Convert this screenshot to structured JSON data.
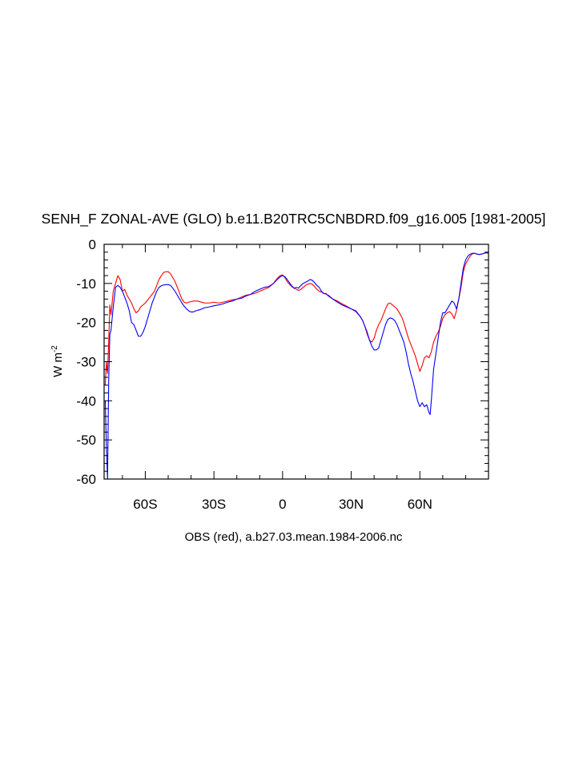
{
  "chart_data": {
    "type": "line",
    "title": "SENH_F ZONAL-AVE (GLO) b.e11.B20TRC5CNBDRD.f09_g16.005 [1981-2005]",
    "xlabel": "OBS (red), a.b27.03.mean.1984-2006.nc",
    "ylabel_main": "W m",
    "ylabel_sup": "-2",
    "xlim": [
      -78,
      90
    ],
    "ylim": [
      -60,
      0
    ],
    "grid": false,
    "legend": "none",
    "xticks": [
      {
        "value": -60,
        "label": "60S"
      },
      {
        "value": -30,
        "label": "30S"
      },
      {
        "value": 0,
        "label": "0"
      },
      {
        "value": 30,
        "label": "30N"
      },
      {
        "value": 60,
        "label": "60N"
      }
    ],
    "yticks": [
      {
        "value": 0,
        "label": "0"
      },
      {
        "value": -10,
        "label": "-10"
      },
      {
        "value": -20,
        "label": "-20"
      },
      {
        "value": -30,
        "label": "-30"
      },
      {
        "value": -40,
        "label": "-40"
      },
      {
        "value": -50,
        "label": "-50"
      },
      {
        "value": -60,
        "label": "-60"
      }
    ],
    "series": [
      {
        "color": "#ff0000",
        "points": [
          [
            -77.5,
            -36
          ],
          [
            -77,
            -30
          ],
          [
            -76.5,
            -33
          ],
          [
            -76,
            -25
          ],
          [
            -75.5,
            -15.5
          ],
          [
            -75,
            -18
          ],
          [
            -74.5,
            -15
          ],
          [
            -74,
            -12
          ],
          [
            -73,
            -10
          ],
          [
            -72,
            -8
          ],
          [
            -71,
            -9
          ],
          [
            -70,
            -12
          ],
          [
            -69,
            -11.5
          ],
          [
            -68,
            -13
          ],
          [
            -67,
            -14
          ],
          [
            -66,
            -15
          ],
          [
            -65,
            -16.5
          ],
          [
            -64,
            -17.5
          ],
          [
            -63,
            -17
          ],
          [
            -62,
            -16
          ],
          [
            -60,
            -15
          ],
          [
            -58,
            -13.5
          ],
          [
            -56,
            -12
          ],
          [
            -55,
            -10.5
          ],
          [
            -54,
            -9
          ],
          [
            -53,
            -8
          ],
          [
            -52,
            -7.2
          ],
          [
            -51,
            -7
          ],
          [
            -50,
            -7
          ],
          [
            -49,
            -7.5
          ],
          [
            -48,
            -8.5
          ],
          [
            -47,
            -9.5
          ],
          [
            -46,
            -11
          ],
          [
            -45,
            -12.5
          ],
          [
            -44,
            -14
          ],
          [
            -43,
            -14.8
          ],
          [
            -42,
            -15
          ],
          [
            -41,
            -14.8
          ],
          [
            -39,
            -14.5
          ],
          [
            -37,
            -14.5
          ],
          [
            -36,
            -14.7
          ],
          [
            -34,
            -15
          ],
          [
            -32,
            -15
          ],
          [
            -30,
            -14.8
          ],
          [
            -28,
            -15
          ],
          [
            -26,
            -14.8
          ],
          [
            -24,
            -14.5
          ],
          [
            -22,
            -14.2
          ],
          [
            -20,
            -14
          ],
          [
            -18,
            -13.5
          ],
          [
            -16,
            -13
          ],
          [
            -14,
            -12.8
          ],
          [
            -12,
            -12.5
          ],
          [
            -10,
            -12
          ],
          [
            -8,
            -11.5
          ],
          [
            -6,
            -11
          ],
          [
            -4,
            -10
          ],
          [
            -3,
            -9.2
          ],
          [
            -2,
            -8.5
          ],
          [
            -1,
            -8
          ],
          [
            0,
            -7.8
          ],
          [
            1,
            -8.5
          ],
          [
            2,
            -9.5
          ],
          [
            3,
            -10.2
          ],
          [
            4,
            -10.8
          ],
          [
            5,
            -11.2
          ],
          [
            6,
            -11.5
          ],
          [
            7,
            -11.8
          ],
          [
            8,
            -11.5
          ],
          [
            9,
            -11
          ],
          [
            10,
            -10.5
          ],
          [
            11,
            -10.2
          ],
          [
            12,
            -10
          ],
          [
            13,
            -10.2
          ],
          [
            14,
            -10.8
          ],
          [
            15,
            -11.5
          ],
          [
            16,
            -12
          ],
          [
            17,
            -12.2
          ],
          [
            18,
            -12.5
          ],
          [
            20,
            -13
          ],
          [
            22,
            -14
          ],
          [
            24,
            -14.5
          ],
          [
            26,
            -15.2
          ],
          [
            28,
            -15.8
          ],
          [
            30,
            -16.5
          ],
          [
            32,
            -17.2
          ],
          [
            34,
            -18.5
          ],
          [
            35,
            -19.5
          ],
          [
            36,
            -21
          ],
          [
            37,
            -23
          ],
          [
            38,
            -24.5
          ],
          [
            39,
            -25
          ],
          [
            40,
            -24
          ],
          [
            41,
            -22
          ],
          [
            42,
            -20.5
          ],
          [
            43,
            -19.5
          ],
          [
            44,
            -18
          ],
          [
            45,
            -16.5
          ],
          [
            46,
            -15.2
          ],
          [
            47,
            -15
          ],
          [
            48,
            -15.5
          ],
          [
            49,
            -16
          ],
          [
            50,
            -16.5
          ],
          [
            51,
            -17.5
          ],
          [
            52,
            -18.5
          ],
          [
            53,
            -20
          ],
          [
            54,
            -22
          ],
          [
            55,
            -24
          ],
          [
            56,
            -25.5
          ],
          [
            57,
            -27
          ],
          [
            58,
            -28.5
          ],
          [
            59,
            -30.5
          ],
          [
            60,
            -32.5
          ],
          [
            61,
            -31
          ],
          [
            62,
            -29
          ],
          [
            63,
            -28.5
          ],
          [
            64,
            -29
          ],
          [
            65,
            -27.5
          ],
          [
            66,
            -25
          ],
          [
            67,
            -23.5
          ],
          [
            68,
            -22.5
          ],
          [
            69,
            -21
          ],
          [
            70,
            -19
          ],
          [
            71,
            -18
          ],
          [
            72,
            -17.5
          ],
          [
            73,
            -17.2
          ],
          [
            74,
            -17.8
          ],
          [
            75,
            -19
          ],
          [
            76,
            -17
          ],
          [
            77,
            -14
          ],
          [
            78,
            -11
          ],
          [
            79,
            -7
          ],
          [
            80,
            -5
          ],
          [
            81,
            -4
          ],
          [
            82,
            -3
          ],
          [
            83,
            -2.4
          ],
          [
            84,
            -2.3
          ],
          [
            85,
            -2.5
          ],
          [
            86,
            -2.6
          ],
          [
            87,
            -2.5
          ],
          [
            88,
            -2.3
          ],
          [
            89,
            -2.2
          ],
          [
            90,
            -2.2
          ]
        ]
      },
      {
        "color": "#0000ff",
        "points": [
          [
            -77.5,
            -40
          ],
          [
            -77,
            -52
          ],
          [
            -76.5,
            -60
          ],
          [
            -76,
            -35
          ],
          [
            -75.5,
            -23
          ],
          [
            -75,
            -22
          ],
          [
            -74,
            -16
          ],
          [
            -73,
            -11
          ],
          [
            -72,
            -10.5
          ],
          [
            -71,
            -11
          ],
          [
            -70,
            -12
          ],
          [
            -69,
            -13.5
          ],
          [
            -68,
            -15
          ],
          [
            -67,
            -17
          ],
          [
            -66,
            -20
          ],
          [
            -65,
            -20.5
          ],
          [
            -64,
            -22
          ],
          [
            -63,
            -23.5
          ],
          [
            -62,
            -23.5
          ],
          [
            -61,
            -22.5
          ],
          [
            -60,
            -21
          ],
          [
            -59,
            -19
          ],
          [
            -58,
            -17
          ],
          [
            -57,
            -15
          ],
          [
            -56,
            -13.5
          ],
          [
            -55,
            -12
          ],
          [
            -54,
            -11
          ],
          [
            -53,
            -10.6
          ],
          [
            -52,
            -10.4
          ],
          [
            -51,
            -10.3
          ],
          [
            -50,
            -10.3
          ],
          [
            -49,
            -10.5
          ],
          [
            -48,
            -11.2
          ],
          [
            -47,
            -12
          ],
          [
            -46,
            -13
          ],
          [
            -45,
            -14
          ],
          [
            -44,
            -15
          ],
          [
            -43,
            -15.8
          ],
          [
            -42,
            -16.5
          ],
          [
            -41,
            -17
          ],
          [
            -40,
            -17.3
          ],
          [
            -39,
            -17.3
          ],
          [
            -38,
            -17
          ],
          [
            -36,
            -16.7
          ],
          [
            -34,
            -16.2
          ],
          [
            -32,
            -16
          ],
          [
            -30,
            -15.7
          ],
          [
            -28,
            -15.5
          ],
          [
            -26,
            -15.2
          ],
          [
            -24,
            -14.8
          ],
          [
            -22,
            -14.5
          ],
          [
            -20,
            -14
          ],
          [
            -18,
            -13.8
          ],
          [
            -16,
            -13.2
          ],
          [
            -14,
            -12.8
          ],
          [
            -12,
            -12
          ],
          [
            -10,
            -11.5
          ],
          [
            -8,
            -11
          ],
          [
            -6,
            -10.8
          ],
          [
            -4,
            -10
          ],
          [
            -3,
            -9.4
          ],
          [
            -2,
            -8.8
          ],
          [
            -1,
            -8.3
          ],
          [
            0,
            -8
          ],
          [
            1,
            -8.3
          ],
          [
            2,
            -9
          ],
          [
            3,
            -9.8
          ],
          [
            4,
            -10.6
          ],
          [
            5,
            -11.2
          ],
          [
            6,
            -11
          ],
          [
            7,
            -11.2
          ],
          [
            8,
            -10.5
          ],
          [
            9,
            -10
          ],
          [
            10,
            -9.7
          ],
          [
            11,
            -9.4
          ],
          [
            12,
            -9
          ],
          [
            13,
            -9.2
          ],
          [
            14,
            -9.8
          ],
          [
            15,
            -10.5
          ],
          [
            16,
            -11
          ],
          [
            17,
            -12
          ],
          [
            18,
            -12.6
          ],
          [
            19,
            -12.6
          ],
          [
            20,
            -13.2
          ],
          [
            22,
            -14
          ],
          [
            24,
            -14.8
          ],
          [
            26,
            -15.5
          ],
          [
            28,
            -16
          ],
          [
            30,
            -16.5
          ],
          [
            32,
            -17
          ],
          [
            34,
            -18.5
          ],
          [
            35,
            -19.5
          ],
          [
            36,
            -21
          ],
          [
            37,
            -22.5
          ],
          [
            38,
            -24.5
          ],
          [
            39,
            -26
          ],
          [
            40,
            -27
          ],
          [
            41,
            -27
          ],
          [
            42,
            -26.5
          ],
          [
            43,
            -24.5
          ],
          [
            44,
            -22.5
          ],
          [
            45,
            -20.5
          ],
          [
            46,
            -19.2
          ],
          [
            47,
            -18.8
          ],
          [
            48,
            -19
          ],
          [
            49,
            -19.5
          ],
          [
            50,
            -20.5
          ],
          [
            51,
            -22
          ],
          [
            52,
            -23.5
          ],
          [
            53,
            -25
          ],
          [
            54,
            -27.5
          ],
          [
            55,
            -30.5
          ],
          [
            56,
            -33
          ],
          [
            57,
            -35
          ],
          [
            58,
            -37.5
          ],
          [
            59,
            -40
          ],
          [
            60,
            -41.5
          ],
          [
            61,
            -40.5
          ],
          [
            62,
            -41.5
          ],
          [
            63,
            -41
          ],
          [
            64,
            -43
          ],
          [
            64.5,
            -43.5
          ],
          [
            65,
            -40
          ],
          [
            66,
            -32
          ],
          [
            67,
            -28
          ],
          [
            68,
            -24
          ],
          [
            69,
            -20
          ],
          [
            70,
            -17.5
          ],
          [
            71,
            -17.5
          ],
          [
            72,
            -16.5
          ],
          [
            73,
            -15.5
          ],
          [
            74,
            -14.5
          ],
          [
            75,
            -15
          ],
          [
            76,
            -16.5
          ],
          [
            77,
            -14
          ],
          [
            78,
            -10
          ],
          [
            79,
            -6
          ],
          [
            80,
            -4
          ],
          [
            81,
            -3
          ],
          [
            82,
            -2.5
          ],
          [
            83,
            -2.3
          ],
          [
            84,
            -2.3
          ],
          [
            85,
            -2.5
          ],
          [
            86,
            -2.6
          ],
          [
            87,
            -2.5
          ],
          [
            88,
            -2.3
          ],
          [
            89,
            -2.2
          ],
          [
            90,
            -2.2
          ]
        ]
      }
    ]
  }
}
